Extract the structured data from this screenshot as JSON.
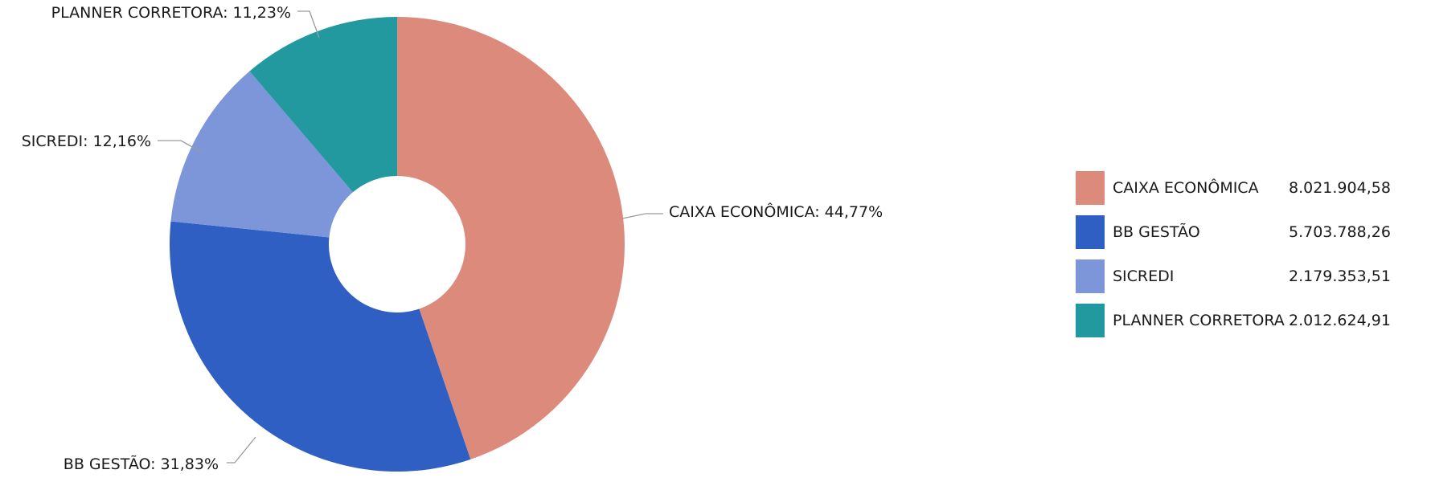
{
  "chart_data": {
    "type": "pie",
    "donut": true,
    "title": "",
    "slices": [
      {
        "name": "CAIXA ECONÔMICA",
        "value": 8021904.58,
        "value_label": "8.021.904,58",
        "percent_label": "CAIXA ECONÔMICA: 44,77%",
        "color": "#dc8a7c"
      },
      {
        "name": "BB GESTÃO",
        "value": 5703788.26,
        "value_label": "5.703.788,26",
        "percent_label": "BB GESTÃO: 31,83%",
        "color": "#2f5fc2"
      },
      {
        "name": "SICREDI",
        "value": 2179353.51,
        "value_label": "2.179.353,51",
        "percent_label": "SICREDI: 12,16%",
        "color": "#7d95d9"
      },
      {
        "name": "PLANNER CORRETORA",
        "value": 2012624.91,
        "value_label": "2.012.624,91",
        "percent_label": "PLANNER CORRETORA: 11,23%",
        "color": "#21999f"
      }
    ],
    "legend_position": "right"
  }
}
